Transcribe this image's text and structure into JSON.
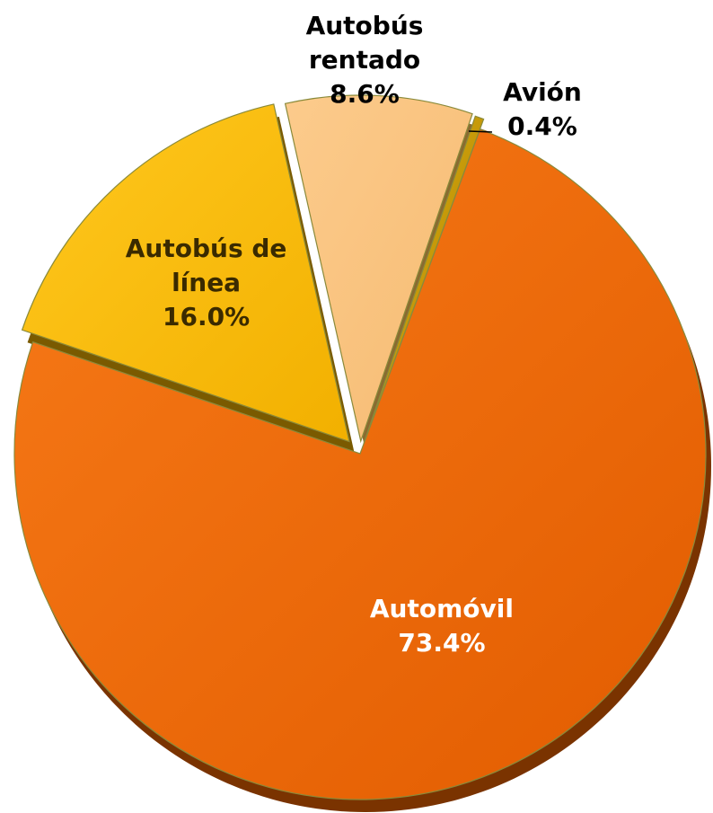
{
  "chart_data": {
    "type": "pie",
    "title": "",
    "legend": "none",
    "slices": [
      {
        "label_lines": [
          "Automóvil"
        ],
        "value": 73.4,
        "value_label": "73.4%",
        "color": "#EE6A0C",
        "label_color": "#ffffff"
      },
      {
        "label_lines": [
          "Autobús de",
          "línea"
        ],
        "value": 16.0,
        "value_label": "16.0%",
        "color": "#FDBE12",
        "label_color": "#3a2a00"
      },
      {
        "label_lines": [
          "Autobús",
          "rentado"
        ],
        "value": 8.6,
        "value_label": "8.6%",
        "color": "#FBC681",
        "label_color": "#000000"
      },
      {
        "label_lines": [
          "Avión"
        ],
        "value": 0.4,
        "value_label": "0.4%",
        "color": "#C79A0A",
        "label_color": "#000000"
      }
    ]
  }
}
